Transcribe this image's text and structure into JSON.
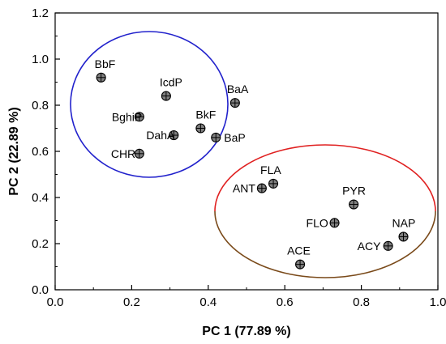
{
  "chart_data": {
    "type": "scatter",
    "xlabel": "PC 1 (77.89 %)",
    "ylabel": "PC 2 (22.89 %)",
    "xlim": [
      0.0,
      1.0
    ],
    "ylim": [
      0.0,
      1.2
    ],
    "xticks": [
      "0.0",
      "0.2",
      "0.4",
      "0.6",
      "0.8",
      "1.0"
    ],
    "yticks": [
      "0.0",
      "0.2",
      "0.4",
      "0.6",
      "0.8",
      "1.0",
      "1.2"
    ],
    "grid": false,
    "points": [
      {
        "label": "BbF",
        "x": 0.12,
        "y": 0.92
      },
      {
        "label": "IcdP",
        "x": 0.29,
        "y": 0.84
      },
      {
        "label": "BaA",
        "x": 0.47,
        "y": 0.81
      },
      {
        "label": "BghiP",
        "x": 0.22,
        "y": 0.75
      },
      {
        "label": "BkF",
        "x": 0.38,
        "y": 0.7
      },
      {
        "label": "DahA",
        "x": 0.31,
        "y": 0.67
      },
      {
        "label": "BaP",
        "x": 0.42,
        "y": 0.66
      },
      {
        "label": "CHR",
        "x": 0.22,
        "y": 0.59
      },
      {
        "label": "FLA",
        "x": 0.57,
        "y": 0.46
      },
      {
        "label": "ANT",
        "x": 0.54,
        "y": 0.44
      },
      {
        "label": "PYR",
        "x": 0.78,
        "y": 0.37
      },
      {
        "label": "FLO",
        "x": 0.73,
        "y": 0.29
      },
      {
        "label": "NAP",
        "x": 0.91,
        "y": 0.23
      },
      {
        "label": "ACY",
        "x": 0.87,
        "y": 0.19
      },
      {
        "label": "ACE",
        "x": 0.64,
        "y": 0.11
      }
    ],
    "groups": [
      {
        "members": [
          "BbF",
          "IcdP",
          "BaA",
          "BghiP",
          "BkF",
          "DahA",
          "BaP",
          "CHR"
        ],
        "color": "#2222cc"
      },
      {
        "members": [
          "FLA",
          "ANT",
          "PYR",
          "FLO",
          "NAP",
          "ACY",
          "ACE"
        ],
        "color_top": "#e02020",
        "color_bottom": "#7a4a1a"
      }
    ],
    "marker_color": "#7f7f7f"
  }
}
